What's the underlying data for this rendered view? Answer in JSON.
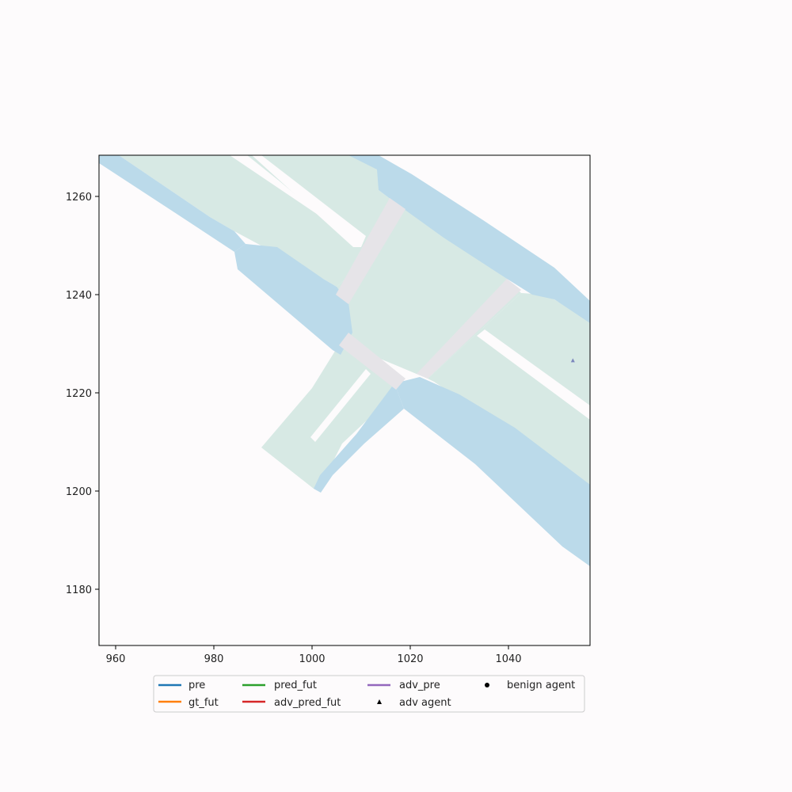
{
  "map": {
    "xlim": [
      956.8,
      1056.8
    ],
    "ylim": [
      1168.4,
      1268.4
    ],
    "x_ticks": [
      "960",
      "980",
      "1000",
      "1020",
      "1040"
    ],
    "y_ticks": [
      "1180",
      "1200",
      "1220",
      "1240",
      "1260"
    ],
    "colors": {
      "drivable_area": "#d7e9e4",
      "sidewalk": "#bbdaea",
      "crosswalk": "#e6e4e8",
      "background": "#fdfbfc",
      "adv_agent": "#7b86bc"
    },
    "adv_agent_position": [
      1053.3,
      1226.5
    ]
  },
  "legend": {
    "items": [
      {
        "label": "pre",
        "kind": "line",
        "color": "#1f77b4"
      },
      {
        "label": "gt_fut",
        "kind": "line",
        "color": "#ff7f0e"
      },
      {
        "label": "pred_fut",
        "kind": "line",
        "color": "#2ca02c"
      },
      {
        "label": "adv_pred_fut",
        "kind": "line",
        "color": "#d62728"
      },
      {
        "label": "adv_pre",
        "kind": "line",
        "color": "#9467bd"
      },
      {
        "label": "adv agent",
        "kind": "triangle",
        "color": "#000000"
      },
      {
        "label": "benign agent",
        "kind": "circle",
        "color": "#000000"
      }
    ]
  }
}
